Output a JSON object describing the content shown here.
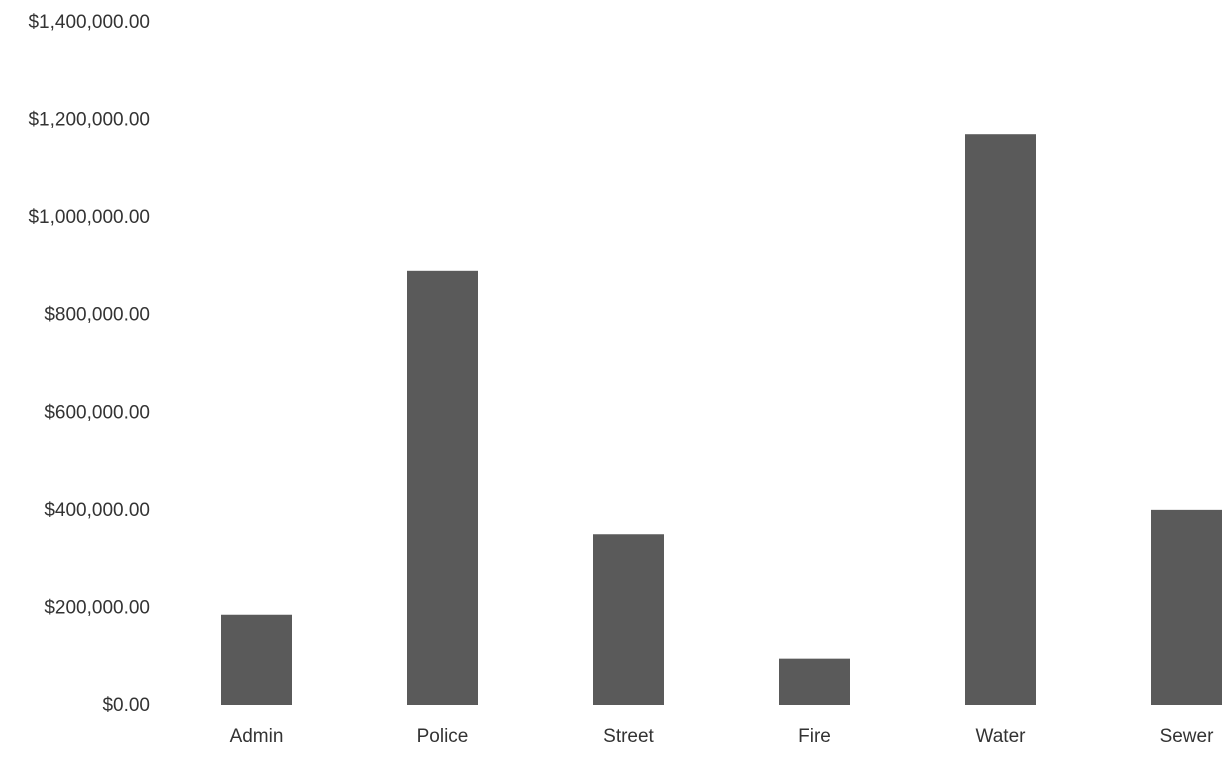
{
  "chart_data": {
    "type": "bar",
    "title": "",
    "xlabel": "",
    "ylabel": "",
    "categories": [
      "Admin",
      "Police",
      "Street",
      "Fire",
      "Water",
      "Sewer"
    ],
    "values": [
      185000,
      890000,
      350000,
      95000,
      1170000,
      400000
    ],
    "ylim": [
      0,
      1400000
    ],
    "yticks": [
      0,
      200000,
      400000,
      600000,
      800000,
      1000000,
      1200000,
      1400000
    ],
    "ytick_labels": [
      "$0.00",
      "$200,000.00",
      "$400,000.00",
      "$600,000.00",
      "$800,000.00",
      "$1,000,000.00",
      "$1,200,000.00",
      "$1,400,000.00"
    ],
    "grid": false,
    "legend": "none",
    "bar_color": "#5a5a5a"
  }
}
